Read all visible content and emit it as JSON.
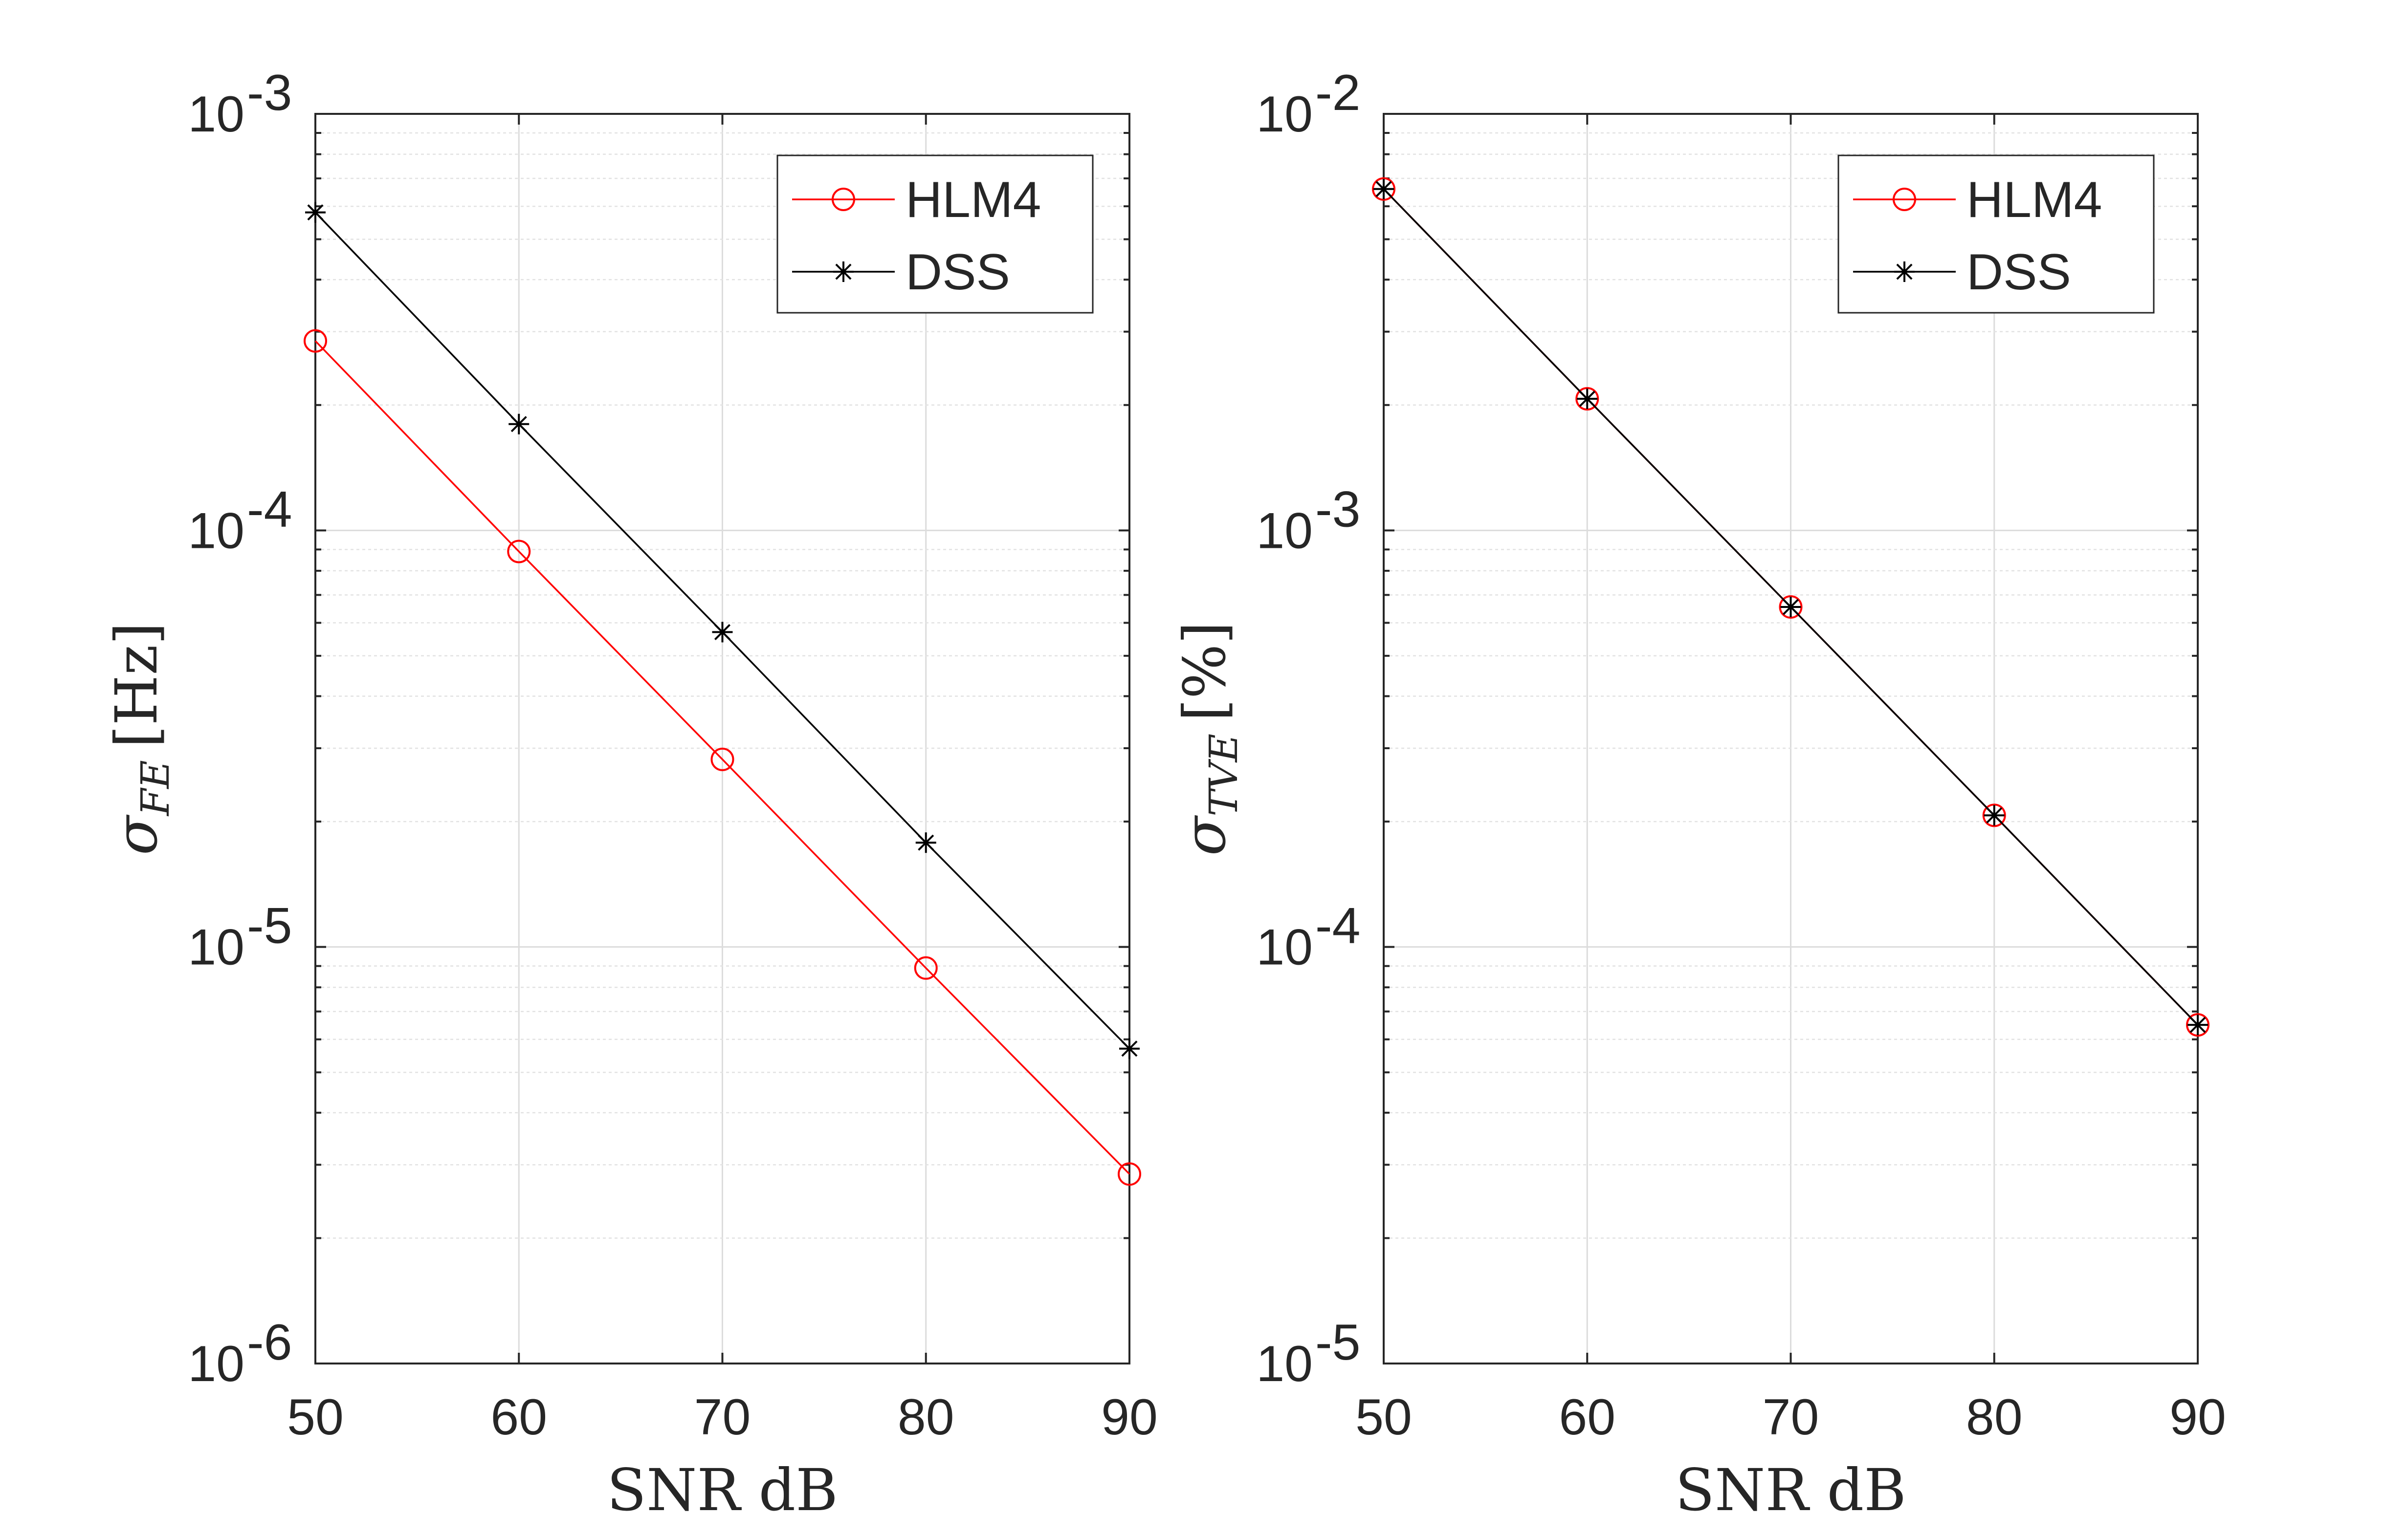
{
  "chart_data": [
    {
      "type": "line",
      "xlabel": "SNR dB",
      "ylabel_symbol": "σ",
      "ylabel_subscript": "FE",
      "ylabel_unit": "[Hz]",
      "xlim": [
        50,
        90
      ],
      "ylim": [
        1e-06,
        0.001
      ],
      "yscale": "log",
      "xticks": [
        "50",
        "60",
        "70",
        "80",
        "90"
      ],
      "yticks": [
        {
          "base": "10",
          "exp": "-6"
        },
        {
          "base": "10",
          "exp": "-5"
        },
        {
          "base": "10",
          "exp": "-4"
        },
        {
          "base": "10",
          "exp": "-3"
        }
      ],
      "grid": true,
      "legend_position": "top-right",
      "x": [
        50,
        60,
        70,
        80,
        90
      ],
      "series": [
        {
          "name": "HLM4",
          "color": "#ff0000",
          "marker": "circle",
          "values": [
            0.000285,
            8.9e-05,
            2.82e-05,
            8.9e-06,
            2.85e-06
          ]
        },
        {
          "name": "DSS",
          "color": "#000000",
          "marker": "star",
          "values": [
            0.00058,
            0.00018,
            5.7e-05,
            1.78e-05,
            5.7e-06
          ]
        }
      ]
    },
    {
      "type": "line",
      "xlabel": "SNR dB",
      "ylabel_symbol": "σ",
      "ylabel_subscript": "TVE",
      "ylabel_unit": "[%]",
      "xlim": [
        50,
        90
      ],
      "ylim": [
        1e-05,
        0.01
      ],
      "yscale": "log",
      "xticks": [
        "50",
        "60",
        "70",
        "80",
        "90"
      ],
      "yticks": [
        {
          "base": "10",
          "exp": "-5"
        },
        {
          "base": "10",
          "exp": "-4"
        },
        {
          "base": "10",
          "exp": "-3"
        },
        {
          "base": "10",
          "exp": "-2"
        }
      ],
      "grid": true,
      "legend_position": "top-right",
      "x": [
        50,
        60,
        70,
        80,
        90
      ],
      "series": [
        {
          "name": "HLM4",
          "color": "#ff0000",
          "marker": "circle",
          "values": [
            0.0066,
            0.00207,
            0.000655,
            0.000207,
            6.5e-05
          ]
        },
        {
          "name": "DSS",
          "color": "#000000",
          "marker": "star",
          "values": [
            0.0066,
            0.00207,
            0.000655,
            0.000207,
            6.5e-05
          ]
        }
      ]
    }
  ]
}
